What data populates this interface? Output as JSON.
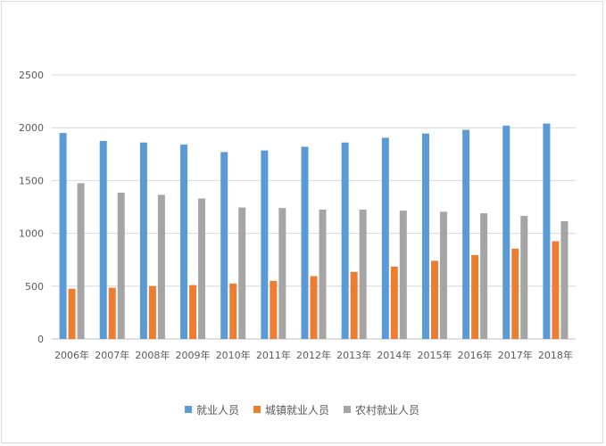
{
  "chart_data": {
    "type": "bar",
    "title": "",
    "xlabel": "",
    "ylabel": "",
    "ylim": [
      0,
      2500
    ],
    "yticks": [
      0,
      500,
      1000,
      1500,
      2000,
      2500
    ],
    "grid": true,
    "legend_position": "bottom",
    "categories": [
      "2006年",
      "2007年",
      "2008年",
      "2009年",
      "2010年",
      "2011年",
      "2012年",
      "2013年",
      "2014年",
      "2015年",
      "2016年",
      "2017年",
      "2018年"
    ],
    "series": [
      {
        "name": "就业人员",
        "color": "#5b9bd5",
        "values": [
          1950,
          1875,
          1860,
          1840,
          1770,
          1785,
          1820,
          1860,
          1905,
          1945,
          1980,
          2020,
          2040
        ]
      },
      {
        "name": "城镇就业人员",
        "color": "#ed7d31",
        "values": [
          475,
          485,
          500,
          510,
          525,
          550,
          595,
          635,
          685,
          740,
          795,
          855,
          925
        ]
      },
      {
        "name": "农村就业人员",
        "color": "#a5a5a5",
        "values": [
          1475,
          1385,
          1365,
          1330,
          1245,
          1240,
          1225,
          1225,
          1215,
          1205,
          1190,
          1165,
          1115
        ]
      }
    ]
  }
}
